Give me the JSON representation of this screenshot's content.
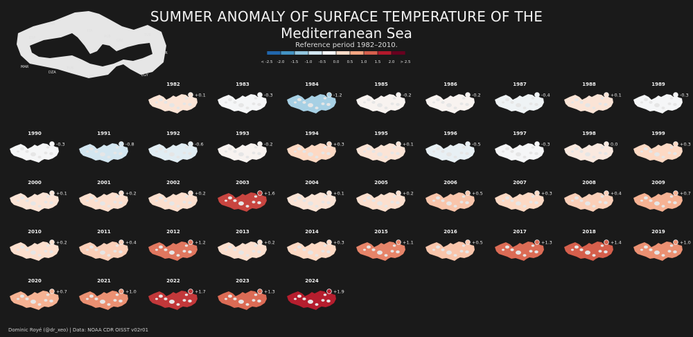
{
  "title_line1": "SUMMER ANOMALY OF SURFACE TEMPERATURE OF THE",
  "title_line2": "Mediterranean Sea",
  "subtitle": "Reference period 1982–2010.",
  "footer": "Dominic Royé (@dr_xeo) | Data: NOAA CDR OISST v02r01",
  "locator_labels": [
    "FRA",
    "ESP",
    "ITA",
    "GRC",
    "TUR",
    "SYR",
    "ALB",
    "MAR",
    "DZA",
    "TUN",
    "LBY",
    "EGY"
  ],
  "legend": {
    "ticks": [
      "< -2.5",
      "-2.0",
      "-1.5",
      "-1.0",
      "-0.5",
      "0.0",
      "0.5",
      "1.0",
      "1.5",
      "2.0",
      "> 2.5"
    ],
    "colors": [
      "#2166ac",
      "#4393c3",
      "#92c5de",
      "#d1e5f0",
      "#f7f7f7",
      "#fddbc7",
      "#f4a582",
      "#d6604d",
      "#b2182b",
      "#67001f"
    ]
  },
  "colors": {
    "background": "#1a1a1a",
    "text": "#e8e8e8",
    "land": "#e6e6e6"
  },
  "chart_data": {
    "type": "heatmap",
    "title": "SUMMER ANOMALY OF SURFACE TEMPERATURE OF THE Mediterranean Sea",
    "subtitle": "Reference period 1982–2010.",
    "xlabel": "",
    "ylabel": "",
    "unit": "°C",
    "scale_range": [
      -2.5,
      2.5
    ],
    "categories": [
      1982,
      1983,
      1984,
      1985,
      1986,
      1987,
      1988,
      1989,
      1990,
      1991,
      1992,
      1993,
      1994,
      1995,
      1996,
      1997,
      1998,
      1999,
      2000,
      2001,
      2002,
      2003,
      2004,
      2005,
      2006,
      2007,
      2008,
      2009,
      2010,
      2011,
      2012,
      2013,
      2014,
      2015,
      2016,
      2017,
      2018,
      2019,
      2020,
      2021,
      2022,
      2023,
      2024
    ],
    "labels": [
      "+0.1",
      "-0.3",
      "-1.2",
      "-0.2",
      "-0.2",
      "-0.4",
      "+0.1",
      "-0.3",
      "-0.3",
      "-0.8",
      "-0.6",
      "-0.2",
      "+0.3",
      "+0.1",
      "-0.5",
      "-0.3",
      "0.0",
      "+0.3",
      "+0.1",
      "+0.2",
      "+0.2",
      "+1.6",
      "+0.1",
      "+0.2",
      "+0.5",
      "+0.3",
      "+0.4",
      "+0.7",
      "+0.2",
      "+0.4",
      "+1.2",
      "+0.2",
      "+0.3",
      "+1.1",
      "+0.5",
      "+1.3",
      "+1.4",
      "+1.0",
      "+0.7",
      "+1.0",
      "+1.7",
      "+1.3",
      "+1.9"
    ],
    "values": [
      0.1,
      -0.3,
      -1.2,
      -0.2,
      -0.2,
      -0.4,
      0.1,
      -0.3,
      -0.3,
      -0.8,
      -0.6,
      -0.2,
      0.3,
      0.1,
      -0.5,
      -0.3,
      0.0,
      0.3,
      0.1,
      0.2,
      0.2,
      1.6,
      0.1,
      0.2,
      0.5,
      0.3,
      0.4,
      0.7,
      0.2,
      0.4,
      1.2,
      0.2,
      0.3,
      1.1,
      0.5,
      1.3,
      1.4,
      1.0,
      0.7,
      1.0,
      1.7,
      1.3,
      1.9
    ]
  }
}
